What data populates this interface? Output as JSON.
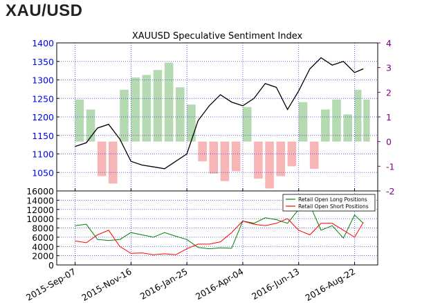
{
  "header": {
    "title": "XAU/USD"
  },
  "chart_data": [
    {
      "id": "price",
      "type": "line+bar",
      "title": "XAUUSD Speculative Sentiment Index",
      "x_tick_labels": [
        "2015-Sep-07",
        "2015-Nov-16",
        "2016-Jan-25",
        "2016-Apr-04",
        "2016-Jun-13",
        "2016-Aug-22"
      ],
      "price_axis": {
        "ylim": [
          1000,
          1400
        ],
        "ticks": [
          1050,
          1100,
          1150,
          1200,
          1250,
          1300,
          1350,
          1400
        ],
        "color": "#0000ff"
      },
      "ssi_axis": {
        "ylim": [
          -2,
          4
        ],
        "ticks": [
          -2,
          -1,
          0,
          1,
          2,
          3,
          4
        ],
        "color": "#800080"
      },
      "grid": true,
      "price_series": {
        "name": "XAUUSD",
        "color": "#000000",
        "x": [
          "2015-09-07",
          "2015-09-21",
          "2015-10-05",
          "2015-10-19",
          "2015-11-02",
          "2015-11-16",
          "2015-11-30",
          "2015-12-14",
          "2015-12-28",
          "2016-01-11",
          "2016-01-25",
          "2016-02-08",
          "2016-02-22",
          "2016-03-07",
          "2016-03-21",
          "2016-04-04",
          "2016-04-18",
          "2016-05-02",
          "2016-05-16",
          "2016-05-30",
          "2016-06-13",
          "2016-06-27",
          "2016-07-11",
          "2016-07-25",
          "2016-08-08",
          "2016-08-22",
          "2016-09-02"
        ],
        "y": [
          1120,
          1130,
          1170,
          1180,
          1140,
          1080,
          1070,
          1065,
          1060,
          1080,
          1100,
          1190,
          1230,
          1260,
          1240,
          1230,
          1250,
          1290,
          1280,
          1220,
          1270,
          1330,
          1360,
          1340,
          1350,
          1320,
          1330
        ]
      },
      "ssi_series": {
        "positive_color": "#b5d9b0",
        "negative_color": "#f7b5b5",
        "x": [
          "2015-09-07",
          "2015-09-21",
          "2015-10-05",
          "2015-10-19",
          "2015-11-02",
          "2015-11-16",
          "2015-11-30",
          "2015-12-14",
          "2015-12-28",
          "2016-01-11",
          "2016-01-25",
          "2016-02-08",
          "2016-02-22",
          "2016-03-07",
          "2016-03-21",
          "2016-04-04",
          "2016-04-18",
          "2016-05-02",
          "2016-05-16",
          "2016-05-30",
          "2016-06-13",
          "2016-06-27",
          "2016-07-11",
          "2016-07-25",
          "2016-08-08",
          "2016-08-22",
          "2016-09-02"
        ],
        "y": [
          1.7,
          1.3,
          -1.4,
          -1.7,
          2.1,
          2.6,
          2.7,
          2.9,
          3.2,
          2.2,
          1.5,
          -0.8,
          -1.3,
          -1.6,
          -1.2,
          1.4,
          -1.5,
          -1.9,
          -1.4,
          -1.0,
          1.6,
          -1.1,
          1.3,
          1.7,
          1.1,
          2.1,
          1.7
        ]
      }
    },
    {
      "id": "positions",
      "type": "line",
      "x_tick_labels": [
        "2015-Sep-07",
        "2015-Nov-16",
        "2016-Jan-25",
        "2016-Apr-04",
        "2016-Jun-13",
        "2016-Aug-22"
      ],
      "ylim": [
        0,
        16000
      ],
      "y_ticks": [
        0,
        2000,
        4000,
        6000,
        8000,
        10000,
        12000,
        14000,
        16000
      ],
      "grid": true,
      "legend_placement": "top-right",
      "series": [
        {
          "name": "Retail Open Long Positions",
          "color": "#008000",
          "x": [
            "2015-09-07",
            "2015-09-21",
            "2015-10-05",
            "2015-10-19",
            "2015-11-02",
            "2015-11-16",
            "2015-11-30",
            "2015-12-14",
            "2015-12-28",
            "2016-01-11",
            "2016-01-25",
            "2016-02-08",
            "2016-02-22",
            "2016-03-07",
            "2016-03-21",
            "2016-04-04",
            "2016-04-18",
            "2016-05-02",
            "2016-05-16",
            "2016-05-30",
            "2016-06-13",
            "2016-06-27",
            "2016-07-11",
            "2016-07-25",
            "2016-08-08",
            "2016-08-22",
            "2016-09-02"
          ],
          "y": [
            8500,
            8800,
            5500,
            5300,
            5500,
            7000,
            6500,
            6000,
            7000,
            6200,
            5500,
            3800,
            3500,
            3700,
            3600,
            9500,
            9000,
            10200,
            9800,
            9000,
            12000,
            13000,
            7500,
            8500,
            5800,
            10800,
            9000
          ]
        },
        {
          "name": "Retail Open Short Positions",
          "color": "#ff0000",
          "x": [
            "2015-09-07",
            "2015-09-21",
            "2015-10-05",
            "2015-10-19",
            "2015-11-02",
            "2015-11-16",
            "2015-11-30",
            "2015-12-14",
            "2015-12-28",
            "2016-01-11",
            "2016-01-25",
            "2016-02-08",
            "2016-02-22",
            "2016-03-07",
            "2016-03-21",
            "2016-04-04",
            "2016-04-18",
            "2016-05-02",
            "2016-05-16",
            "2016-05-30",
            "2016-06-13",
            "2016-06-27",
            "2016-07-11",
            "2016-07-25",
            "2016-08-08",
            "2016-08-22",
            "2016-09-02"
          ],
          "y": [
            5200,
            4800,
            6500,
            7500,
            4000,
            2500,
            2600,
            2200,
            2400,
            2200,
            3500,
            4500,
            4500,
            5000,
            7000,
            9500,
            8800,
            8500,
            9000,
            10000,
            7500,
            6500,
            9000,
            9000,
            7500,
            6000,
            9200
          ]
        }
      ]
    }
  ]
}
